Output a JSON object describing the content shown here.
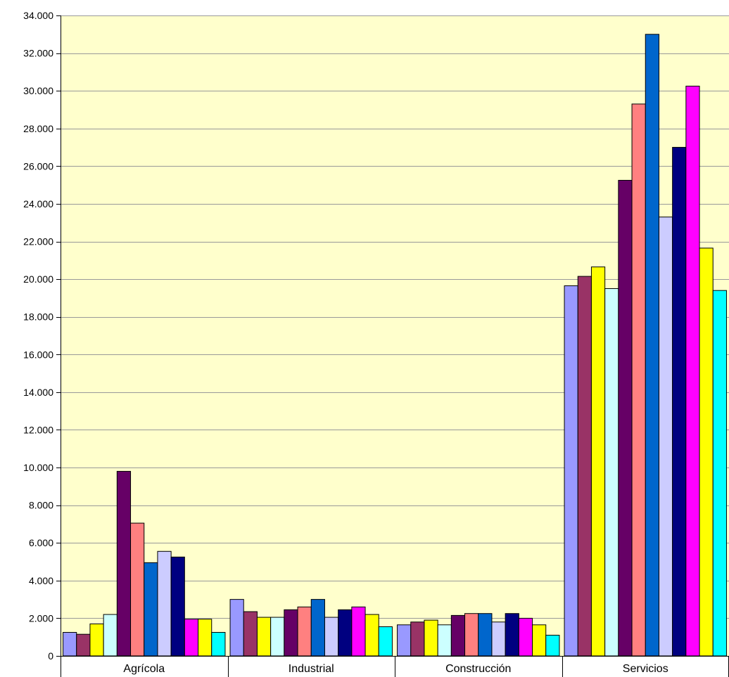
{
  "chart_data": {
    "type": "bar",
    "title": "",
    "xlabel": "",
    "ylabel": "",
    "ylim": [
      0,
      34000
    ],
    "y_ticks": [
      "0",
      "2.000",
      "4.000",
      "6.000",
      "8.000",
      "10.000",
      "12.000",
      "14.000",
      "16.000",
      "18.000",
      "20.000",
      "22.000",
      "24.000",
      "26.000",
      "28.000",
      "30.000",
      "32.000",
      "34.000"
    ],
    "y_tick_values": [
      0,
      2000,
      4000,
      6000,
      8000,
      10000,
      12000,
      14000,
      16000,
      18000,
      20000,
      22000,
      24000,
      26000,
      28000,
      30000,
      32000,
      34000
    ],
    "grid": true,
    "legend": "none",
    "plot_background": "#ffffcc",
    "categories": [
      "Agrícola",
      "Industrial",
      "Construcción",
      "Servicios"
    ],
    "series": [
      {
        "color": "#9999ff",
        "values": [
          1250,
          3000,
          1650,
          19650
        ]
      },
      {
        "color": "#993366",
        "values": [
          1150,
          2350,
          1800,
          20150
        ]
      },
      {
        "color": "#ffff00",
        "values": [
          1700,
          2050,
          1900,
          20650
        ]
      },
      {
        "color": "#ccffff",
        "values": [
          2200,
          2050,
          1650,
          19500
        ]
      },
      {
        "color": "#660066",
        "values": [
          9800,
          2450,
          2150,
          25250
        ]
      },
      {
        "color": "#ff8080",
        "values": [
          7050,
          2600,
          2250,
          29300
        ]
      },
      {
        "color": "#0066cc",
        "values": [
          4950,
          3000,
          2250,
          33000
        ]
      },
      {
        "color": "#ccccff",
        "values": [
          5550,
          2050,
          1800,
          23300
        ]
      },
      {
        "color": "#000080",
        "values": [
          5250,
          2450,
          2250,
          27000
        ]
      },
      {
        "color": "#ff00ff",
        "values": [
          1950,
          2600,
          2000,
          30250
        ]
      },
      {
        "color": "#ffff00",
        "values": [
          1950,
          2200,
          1650,
          21650
        ]
      },
      {
        "color": "#00ffff",
        "values": [
          1250,
          1550,
          1100,
          19400
        ]
      }
    ]
  }
}
